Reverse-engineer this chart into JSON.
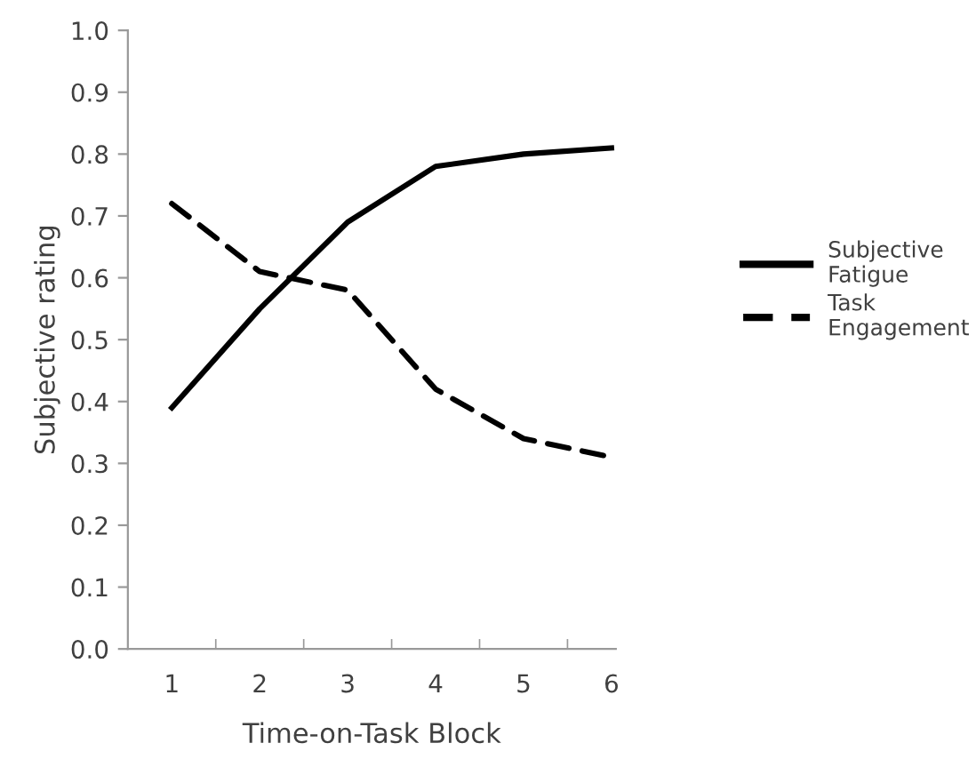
{
  "chart_data": {
    "type": "line",
    "xlabel": "Time-on-Task Block",
    "ylabel": "Subjective rating",
    "categories": [
      "1",
      "2",
      "3",
      "4",
      "5",
      "6"
    ],
    "series": [
      {
        "name": "Subjective Fatigue",
        "color": "#000000",
        "line_style": "solid",
        "values": [
          0.39,
          0.55,
          0.69,
          0.78,
          0.8,
          0.81
        ]
      },
      {
        "name": "Task Engagement",
        "color": "#000000",
        "line_style": "dashed",
        "values": [
          0.72,
          0.61,
          0.58,
          0.42,
          0.34,
          0.31
        ]
      }
    ],
    "ylim": [
      0,
      1.0
    ],
    "yticks": [
      {
        "value": 0,
        "label": "0.0"
      },
      {
        "value": 0.1,
        "label": "0.1"
      },
      {
        "value": 0.2,
        "label": "0.2"
      },
      {
        "value": 0.3,
        "label": "0.3"
      },
      {
        "value": 0.4,
        "label": "0.4"
      },
      {
        "value": 0.5,
        "label": "0.5"
      },
      {
        "value": 0.6,
        "label": "0.6"
      },
      {
        "value": 0.7,
        "label": "0.7"
      },
      {
        "value": 0.8,
        "label": "0.8"
      },
      {
        "value": 0.9,
        "label": "0.9"
      },
      {
        "value": 1.0,
        "label": "1.0"
      }
    ],
    "grid": false,
    "legend": "right",
    "marker": "none"
  }
}
